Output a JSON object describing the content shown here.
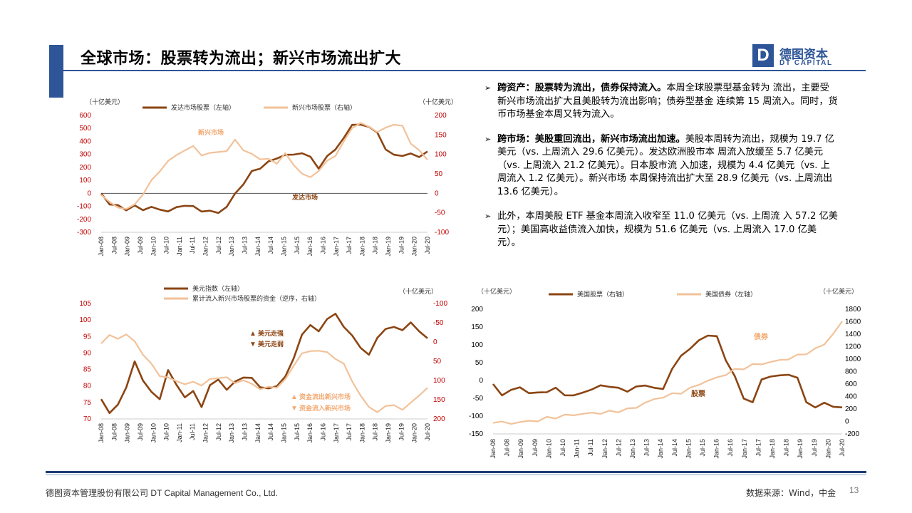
{
  "header": {
    "title": "全球市场：股票转为流出；新兴市场流出扩大",
    "logo_cn": "德图资本",
    "logo_en": "DT CAPITAL",
    "logo_mark": "D",
    "brand_color": "#2e5597"
  },
  "bullets": [
    {
      "bold": "跨资产：股票转为流出，债券保持流入。",
      "text": "本周全球股票型基金转为 流出，主要受新兴市场流出扩大且美股转为流出影响；债券型基金 连续第 15 周流入。同时，货币市场基金本周又转为流入。"
    },
    {
      "bold": "跨市场：美股重回流出，新兴市场流出加速。",
      "text": "美股本周转为流出，规模为 19.7 亿美元（vs. 上周流入 29.6 亿美元）。发达欧洲股市本 周流入放缓至 5.7 亿美元（vs. 上周流入 21.2 亿美元）。日本股市流 入加速，规模为 4.4 亿美元（vs. 上周流入 1.2 亿美元）。新兴市场 本周保持流出扩大至 28.9 亿美元（vs. 上周流出 13.6 亿美元）。"
    },
    {
      "bold": "",
      "text": "此外，本周美股 ETF 基金本周流入收窄至 11.0 亿美元（vs. 上周流 入 57.2 亿美元）；美国高收益债流入加快，规模为 51.6 亿美元（vs. 上周流入 17.0 亿美元）。"
    }
  ],
  "footer": {
    "company": "德图资本管理股份有限公司 DT Capital Management Co., Ltd.",
    "source": "数据来源：Wind，中金",
    "page": "13"
  },
  "colors": {
    "dark_series": "#8b4513",
    "light_series": "#f2c29a",
    "axis_label": "#c00000"
  },
  "chart_data": [
    {
      "type": "line",
      "id": "chart1",
      "unit_left": "（十亿美元）",
      "unit_right": "（十亿美元）",
      "x_ticks": [
        "Jan-08",
        "Jul-08",
        "Jan-09",
        "Jul-09",
        "Jan-10",
        "Jul-10",
        "Jan-11",
        "Jul-11",
        "Jan-12",
        "Jul-12",
        "Jan-13",
        "Jul-13",
        "Jan-14",
        "Jul-14",
        "Jan-15",
        "Jul-15",
        "Jan-16",
        "Jul-16",
        "Jan-17",
        "Jul-17",
        "Jan-18",
        "Jul-18",
        "Jan-19",
        "Jul-19",
        "Jan-20",
        "Jul-20"
      ],
      "y_left_ticks": [
        600,
        500,
        400,
        300,
        200,
        100,
        0,
        -100,
        -200,
        -300
      ],
      "y_right_ticks": [
        200,
        150,
        100,
        50,
        0,
        -50,
        -100
      ],
      "ylim_left": [
        -300,
        600
      ],
      "ylim_right": [
        -100,
        200
      ],
      "annotations": [
        "新兴市场",
        "发达市场"
      ],
      "series": [
        {
          "name": "发达市场股票（左轴）",
          "axis": "left",
          "color": "#8b4513",
          "values": [
            0,
            -80,
            -100,
            -120,
            -105,
            -120,
            -110,
            -125,
            -135,
            -115,
            -85,
            -110,
            -130,
            -140,
            -150,
            -100,
            -10,
            80,
            160,
            200,
            240,
            270,
            300,
            290,
            320,
            270,
            200,
            280,
            340,
            430,
            520,
            540,
            500,
            480,
            330,
            300,
            290,
            300,
            290,
            310
          ]
        },
        {
          "name": "新兴市场股票（右轴）",
          "axis": "right",
          "color": "#f2c29a",
          "values": [
            0,
            -25,
            -35,
            -40,
            -30,
            0,
            30,
            60,
            80,
            100,
            110,
            120,
            100,
            100,
            110,
            105,
            140,
            110,
            100,
            90,
            85,
            80,
            100,
            75,
            50,
            40,
            60,
            80,
            100,
            130,
            170,
            180,
            170,
            160,
            165,
            180,
            170,
            130,
            110,
            85
          ]
        }
      ]
    },
    {
      "type": "line",
      "id": "chart2",
      "unit_right": "（十亿美元）",
      "x_ticks": [
        "Jan-08",
        "Jul-08",
        "Jan-09",
        "Jul-09",
        "Jan-10",
        "Jul-10",
        "Jan-11",
        "Jul-11",
        "Jan-12",
        "Jul-12",
        "Jan-13",
        "Jul-13",
        "Jan-14",
        "Jul-14",
        "Jan-15",
        "Jul-15",
        "Jan-16",
        "Jul-16",
        "Jan-17",
        "Jul-17",
        "Jan-18",
        "Jul-18",
        "Jan-19",
        "Jul-19",
        "Jan-20",
        "Jul-20"
      ],
      "y_left_ticks": [
        105,
        100,
        95,
        90,
        85,
        80,
        75,
        70
      ],
      "y_right_ticks": [
        -100,
        -50,
        0,
        50,
        100,
        150,
        200
      ],
      "ylim_left": [
        70,
        105
      ],
      "ylim_right": [
        200,
        -100
      ],
      "annotations": [
        "美元走强",
        "美元走弱",
        "资金流出新兴市场",
        "资金流入新兴市场"
      ],
      "series": [
        {
          "name": "美元指数（左轴）",
          "axis": "left",
          "color": "#8b4513",
          "values": [
            76,
            72,
            74,
            80,
            87,
            82,
            78,
            76,
            85,
            80,
            77,
            78,
            74,
            80,
            82,
            79,
            81,
            83,
            82,
            80,
            79,
            80,
            83,
            88,
            96,
            98,
            97,
            100,
            102,
            98,
            95,
            92,
            89,
            95,
            97,
            98,
            97,
            99,
            97,
            94
          ]
        },
        {
          "name": "累计流入新兴市场股票的资金（逆序，右轴）",
          "axis": "right",
          "color": "#f2c29a",
          "values": [
            0,
            -15,
            -10,
            -20,
            0,
            30,
            60,
            85,
            95,
            100,
            110,
            105,
            110,
            100,
            90,
            95,
            105,
            100,
            110,
            120,
            120,
            115,
            100,
            60,
            30,
            25,
            20,
            30,
            40,
            60,
            100,
            140,
            170,
            180,
            170,
            160,
            180,
            155,
            140,
            120
          ]
        }
      ]
    },
    {
      "type": "line",
      "id": "chart3",
      "unit_left": "（十亿美元）",
      "unit_right": "（十亿美元）",
      "x_ticks": [
        "Jan-08",
        "Jul-08",
        "Jan-09",
        "Jul-09",
        "Jan-10",
        "Jul-10",
        "Jan-11",
        "Jul-11",
        "Jan-12",
        "Jul-12",
        "Jan-13",
        "Jul-13",
        "Jan-14",
        "Jul-14",
        "Jan-15",
        "Jul-15",
        "Jan-16",
        "Jul-16",
        "Jan-17",
        "Jul-17",
        "Jan-18",
        "Jul-18",
        "Jan-19",
        "Jul-19",
        "Jan-20",
        "Jul-20"
      ],
      "y_left_ticks": [
        200,
        150,
        100,
        50,
        0,
        -50,
        -100,
        -150
      ],
      "y_right_ticks": [
        1800,
        1600,
        1400,
        1200,
        1000,
        800,
        600,
        400,
        200,
        0,
        -200
      ],
      "ylim_left": [
        -150,
        200
      ],
      "ylim_right": [
        -200,
        1800
      ],
      "annotations": [
        "债券",
        "股票"
      ],
      "series": [
        {
          "name": "美国股票（右轴）",
          "axis": "left",
          "color": "#8b4513",
          "values": [
            -10,
            -40,
            -30,
            -15,
            -40,
            -30,
            -35,
            -20,
            -40,
            -45,
            -30,
            -30,
            -10,
            -20,
            -20,
            -30,
            -20,
            -10,
            -25,
            -20,
            30,
            70,
            90,
            110,
            130,
            120,
            60,
            10,
            -50,
            -60,
            0,
            15,
            10,
            20,
            5,
            -60,
            -75,
            -65,
            -70,
            -80
          ]
        },
        {
          "name": "美国债券（左轴）",
          "axis": "right",
          "color": "#f2c29a",
          "values": [
            0,
            -20,
            -30,
            -10,
            0,
            20,
            50,
            70,
            90,
            110,
            120,
            130,
            140,
            150,
            170,
            190,
            230,
            300,
            350,
            400,
            430,
            470,
            520,
            600,
            650,
            700,
            760,
            820,
            860,
            900,
            930,
            950,
            980,
            1010,
            1050,
            1100,
            1150,
            1250,
            1400,
            1600
          ]
        }
      ]
    }
  ]
}
